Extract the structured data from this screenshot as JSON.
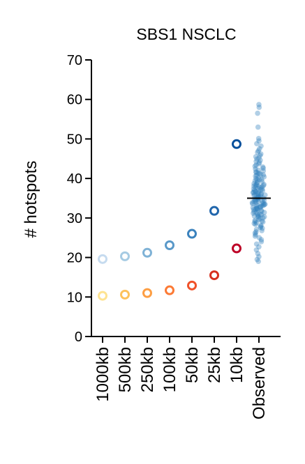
{
  "chart_data": {
    "type": "scatter",
    "title": "SBS1 NSCLC",
    "xlabel": "",
    "ylabel": "# hotspots",
    "ylim": [
      0,
      70
    ],
    "yticks": [
      0,
      10,
      20,
      30,
      40,
      50,
      60,
      70
    ],
    "categories": [
      "1000kb",
      "500kb",
      "250kb",
      "100kb",
      "50kb",
      "25kb",
      "10kb",
      "Observed"
    ],
    "grid": false,
    "legend": "none",
    "series": [
      {
        "values": [
          19.6,
          20.3,
          21.2,
          23.1,
          26.0,
          31.8,
          48.7
        ],
        "colors": [
          "#c6dbef",
          "#a6cbe3",
          "#7fb2d6",
          "#5a99c9",
          "#3b82bd",
          "#2166ac",
          "#08519c"
        ]
      },
      {
        "values": [
          10.3,
          10.6,
          11.0,
          11.7,
          12.9,
          15.5,
          22.3
        ],
        "colors": [
          "#fee391",
          "#fdc25c",
          "#fd9e43",
          "#fc7a35",
          "#f0522a",
          "#d7301f",
          "#bd0026"
        ]
      }
    ],
    "observed": {
      "mean": 35.0,
      "color": "#3182bd",
      "mean_line_color": "#000000",
      "points": [
        58.7,
        58.0,
        56.5,
        53.0,
        50.1,
        49.5,
        48.8,
        48.2,
        47.5,
        47.0,
        46.6,
        46.2,
        45.8,
        45.5,
        45.2,
        44.9,
        44.6,
        44.3,
        44.0,
        43.7,
        43.4,
        43.1,
        42.9,
        42.6,
        42.4,
        42.1,
        41.9,
        41.7,
        41.4,
        41.2,
        41.0,
        40.8,
        40.6,
        40.4,
        40.2,
        40.0,
        39.8,
        39.6,
        39.4,
        39.2,
        39.0,
        38.9,
        38.7,
        38.5,
        38.3,
        38.2,
        38.0,
        37.8,
        37.7,
        37.5,
        37.3,
        37.2,
        37.0,
        36.8,
        36.7,
        36.5,
        36.4,
        36.2,
        36.1,
        35.9,
        35.8,
        35.6,
        35.5,
        35.3,
        35.2,
        35.0,
        34.9,
        34.7,
        34.6,
        34.4,
        34.3,
        34.1,
        34.0,
        33.8,
        33.7,
        33.5,
        33.4,
        33.2,
        33.1,
        32.9,
        32.8,
        32.6,
        32.5,
        32.3,
        32.2,
        32.0,
        31.9,
        31.7,
        31.5,
        31.4,
        31.2,
        31.0,
        30.9,
        30.7,
        30.5,
        30.3,
        30.2,
        30.0,
        29.8,
        29.6,
        29.4,
        29.2,
        29.0,
        28.8,
        28.6,
        28.4,
        28.1,
        27.9,
        27.6,
        27.4,
        27.1,
        26.8,
        26.5,
        26.2,
        25.8,
        25.4,
        25.0,
        24.5,
        24.0,
        23.4,
        22.7,
        21.9,
        21.0,
        20.2,
        19.5,
        19.0,
        41.5,
        38.4,
        36.9,
        35.7,
        34.8,
        33.9,
        32.7,
        31.6,
        30.4,
        29.1,
        36.3,
        35.1,
        33.6,
        37.9,
        34.2,
        39.7,
        32.4,
        40.9,
        30.8,
        35.4,
        36.6,
        33.3,
        37.4,
        34.5,
        38.1,
        32.1,
        35.9,
        33.0
      ]
    }
  }
}
